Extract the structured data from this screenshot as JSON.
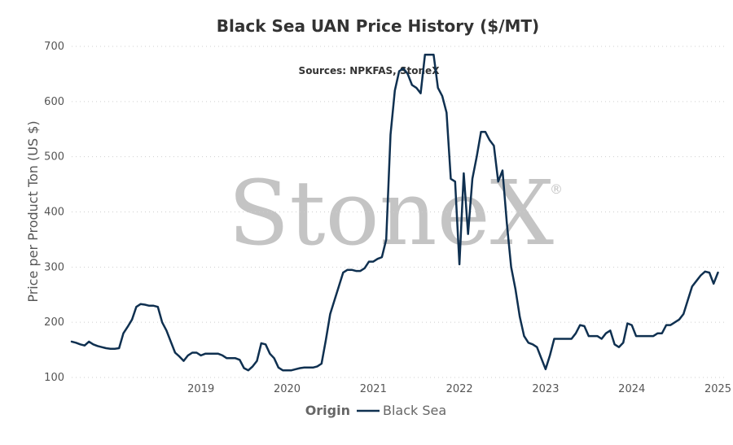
{
  "chart_data": {
    "type": "line",
    "title": "Black Sea UAN Price History ($/MT)",
    "subtitle": "Sources: NPKFAS, StoneX",
    "ylabel": "Price per Product Ton (US $)",
    "xlabel": "",
    "ylim": [
      100,
      700
    ],
    "yticks": [
      100,
      200,
      300,
      400,
      500,
      600,
      700
    ],
    "xlim": [
      2018.0,
      2025.58
    ],
    "xticks": [
      2019,
      2020,
      2021,
      2022,
      2023,
      2024,
      2025
    ],
    "xtick_labels": [
      "2019",
      "2020",
      "2021",
      "2022",
      "2023",
      "2024",
      "2025"
    ],
    "grid": "horizontal-dotted",
    "legend": {
      "title": "Origin",
      "position": "bottom-center"
    },
    "watermark": "StoneX",
    "watermark_mark": "®",
    "colors": {
      "line": "#0f3050",
      "grid": "#cfcfcf",
      "text": "#333333"
    },
    "series": [
      {
        "name": "Black Sea",
        "x": [
          2018.0,
          2018.05,
          2018.1,
          2018.15,
          2018.2,
          2018.25,
          2018.3,
          2018.35,
          2018.4,
          2018.45,
          2018.5,
          2018.55,
          2018.6,
          2018.65,
          2018.7,
          2018.75,
          2018.8,
          2018.85,
          2018.9,
          2018.95,
          2019.0,
          2019.05,
          2019.1,
          2019.15,
          2019.2,
          2019.25,
          2019.3,
          2019.35,
          2019.4,
          2019.45,
          2019.5,
          2019.55,
          2019.6,
          2019.65,
          2019.7,
          2019.75,
          2019.8,
          2019.85,
          2019.9,
          2019.95,
          2020.0,
          2020.05,
          2020.1,
          2020.15,
          2020.2,
          2020.25,
          2020.3,
          2020.35,
          2020.4,
          2020.45,
          2020.5,
          2020.55,
          2020.6,
          2020.65,
          2020.7,
          2020.75,
          2020.8,
          2020.85,
          2020.9,
          2020.95,
          2021.0,
          2021.05,
          2021.1,
          2021.15,
          2021.2,
          2021.25,
          2021.3,
          2021.35,
          2021.4,
          2021.45,
          2021.5,
          2021.55,
          2021.6,
          2021.65,
          2021.7,
          2021.75,
          2021.8,
          2021.85,
          2021.9,
          2021.95,
          2022.0,
          2022.05,
          2022.1,
          2022.15,
          2022.2,
          2022.25,
          2022.3,
          2022.35,
          2022.4,
          2022.45,
          2022.5,
          2022.55,
          2022.6,
          2022.65,
          2022.7,
          2022.75,
          2022.8,
          2022.85,
          2022.9,
          2022.95,
          2023.0,
          2023.05,
          2023.1,
          2023.15,
          2023.2,
          2023.25,
          2023.3,
          2023.35,
          2023.4,
          2023.45,
          2023.5,
          2023.55,
          2023.6,
          2023.65,
          2023.7,
          2023.75,
          2023.8,
          2023.85,
          2023.9,
          2023.95,
          2024.0,
          2024.05,
          2024.1,
          2024.15,
          2024.2,
          2024.25,
          2024.3,
          2024.35,
          2024.4,
          2024.45,
          2024.5,
          2024.55,
          2024.6,
          2024.65,
          2024.7,
          2024.75,
          2024.8,
          2024.85,
          2024.9,
          2024.95,
          2025.0,
          2025.05,
          2025.1,
          2025.15,
          2025.2,
          2025.25,
          2025.3,
          2025.35,
          2025.4,
          2025.45,
          2025.5
        ],
        "values": [
          165,
          163,
          160,
          158,
          165,
          160,
          157,
          155,
          153,
          152,
          152,
          153,
          180,
          192,
          205,
          228,
          233,
          232,
          230,
          230,
          228,
          200,
          185,
          165,
          145,
          138,
          130,
          140,
          145,
          145,
          140,
          143,
          143,
          143,
          143,
          140,
          135,
          135,
          135,
          132,
          117,
          113,
          120,
          130,
          162,
          160,
          143,
          135,
          118,
          113,
          113,
          113,
          115,
          117,
          118,
          118,
          118,
          120,
          125,
          168,
          215,
          240,
          265,
          290,
          295,
          295,
          293,
          293,
          298,
          310,
          310,
          315,
          318,
          350,
          540,
          620,
          655,
          660,
          650,
          630,
          625,
          615,
          685,
          685,
          685,
          625,
          610,
          580,
          460,
          455,
          305,
          470,
          360,
          460,
          500,
          545,
          545,
          530,
          520,
          455,
          475,
          380,
          300,
          260,
          210,
          175,
          163,
          160,
          155,
          135,
          115,
          140,
          170,
          170,
          170,
          170,
          170,
          180,
          195,
          193,
          175,
          175,
          175,
          170,
          180,
          185,
          160,
          155,
          163,
          198,
          195,
          175,
          175,
          175,
          175,
          175,
          180,
          180,
          195,
          195,
          200,
          205,
          215,
          240,
          265,
          275,
          285,
          292,
          290,
          270,
          290
        ]
      }
    ]
  }
}
